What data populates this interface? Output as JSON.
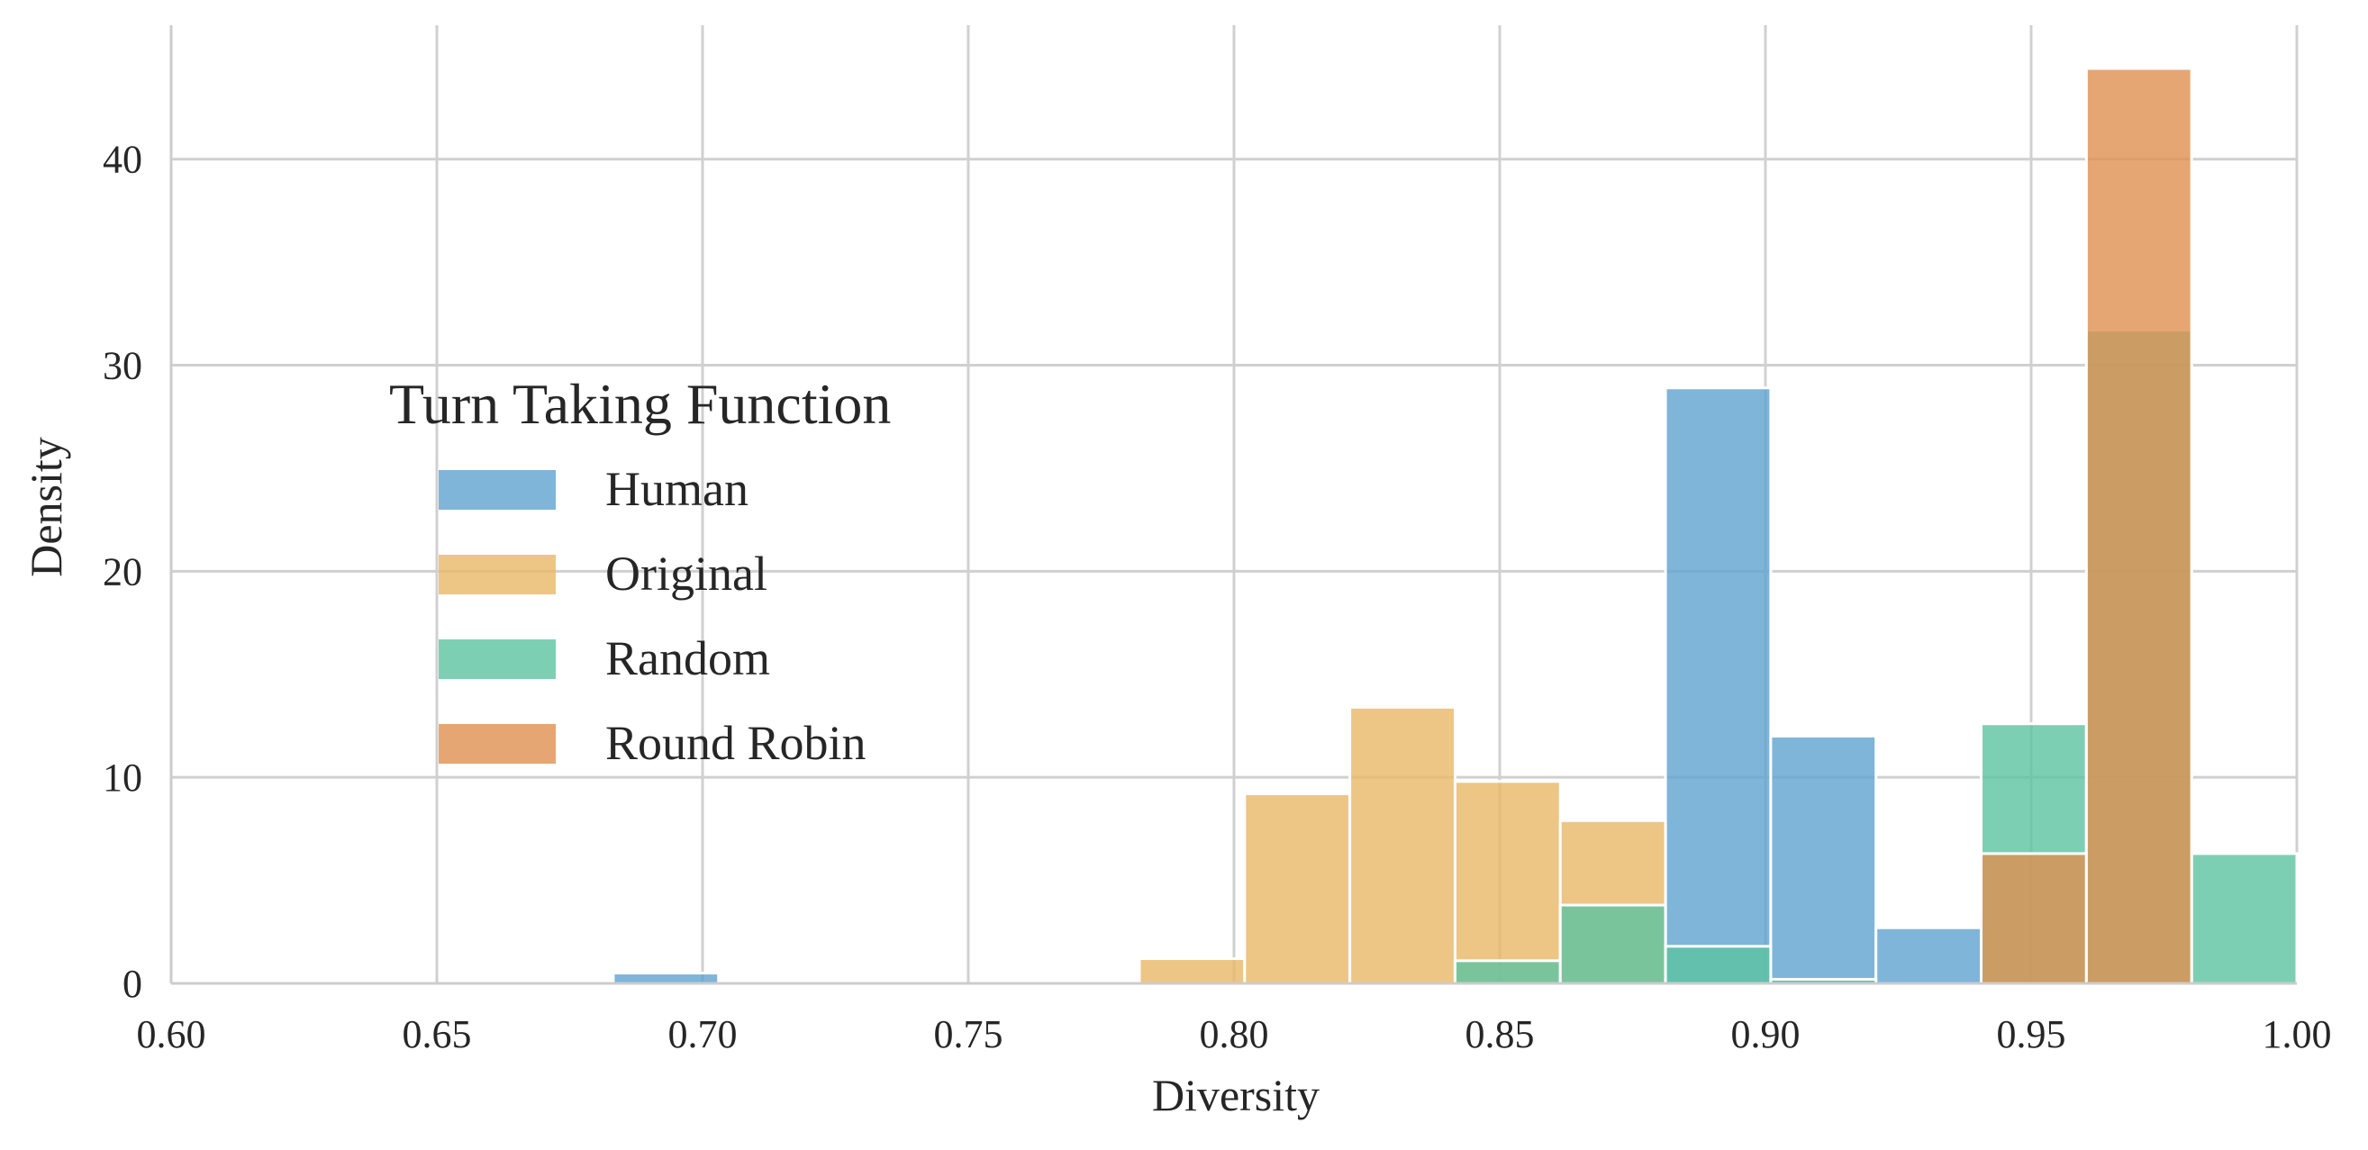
{
  "chart_data": {
    "type": "bar",
    "histogram": true,
    "xlabel": "Diversity",
    "ylabel": "Density",
    "xlim": [
      0.6,
      1.0
    ],
    "ylim": [
      0,
      46.5
    ],
    "x_ticks": [
      "0.60",
      "0.65",
      "0.70",
      "0.75",
      "0.80",
      "0.85",
      "0.90",
      "0.95",
      "1.00"
    ],
    "y_ticks": [
      "0",
      "10",
      "20",
      "30",
      "40"
    ],
    "grid": true,
    "bin_width": 0.0198,
    "legend": {
      "title": "Turn Taking Function",
      "placement": "center-left",
      "entries": [
        "Human",
        "Original",
        "Random",
        "Round Robin"
      ]
    },
    "series": [
      {
        "name": "Human",
        "color": "#5fa2cf",
        "bins": [
          {
            "x0": 0.6832,
            "height": 0.5
          },
          {
            "x0": 0.8812,
            "height": 28.9
          },
          {
            "x0": 0.901,
            "height": 12.0
          },
          {
            "x0": 0.9208,
            "height": 2.7
          }
        ]
      },
      {
        "name": "Original",
        "color": "#e9b766",
        "bins": [
          {
            "x0": 0.7822,
            "height": 1.2
          },
          {
            "x0": 0.802,
            "height": 9.2
          },
          {
            "x0": 0.8218,
            "height": 13.4
          },
          {
            "x0": 0.8416,
            "height": 9.8
          },
          {
            "x0": 0.8614,
            "height": 7.9
          }
        ]
      },
      {
        "name": "Random",
        "color": "#5cc3a1",
        "bins": [
          {
            "x0": 0.8416,
            "height": 1.1
          },
          {
            "x0": 0.8614,
            "height": 3.8
          },
          {
            "x0": 0.8812,
            "height": 1.8
          },
          {
            "x0": 0.901,
            "height": 0.2
          },
          {
            "x0": 0.9406,
            "height": 12.6
          },
          {
            "x0": 0.9604,
            "height": 31.7
          },
          {
            "x0": 0.9802,
            "height": 6.3
          }
        ]
      },
      {
        "name": "Round Robin",
        "color": "#de9050",
        "bins": [
          {
            "x0": 0.9406,
            "height": 6.3
          },
          {
            "x0": 0.9604,
            "height": 44.4
          }
        ]
      }
    ]
  }
}
